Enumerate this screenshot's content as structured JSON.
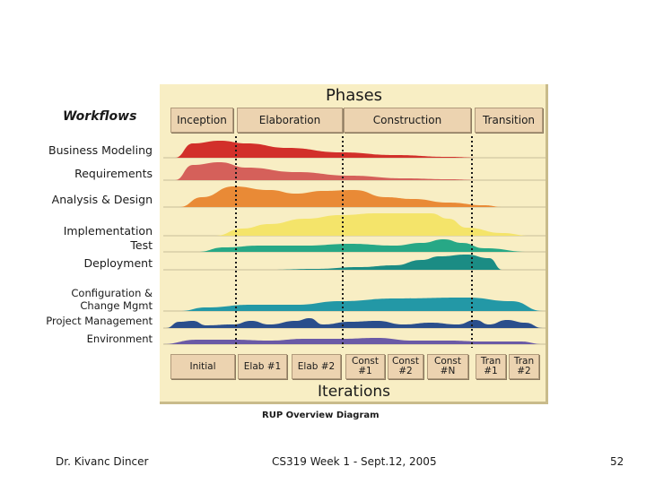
{
  "diagram": {
    "workflows_title": "Workflows",
    "phases_title": "Phases",
    "iterations_title": "Iterations",
    "caption": "RUP Overview Diagram",
    "phases": [
      "Inception",
      "Elaboration",
      "Construction",
      "Transition"
    ],
    "iterations": [
      "Initial",
      "Elab #1",
      "Elab #2",
      "Const #1",
      "Const #2",
      "Const #N",
      "Tran #1",
      "Tran #2"
    ],
    "workflows": [
      {
        "label": "Business Modeling",
        "color": "#d2302a"
      },
      {
        "label": "Requirements",
        "color": "#d5605a"
      },
      {
        "label": "Analysis & Design",
        "color": "#e98a36"
      },
      {
        "label": "Implementation",
        "color": "#f4e46a"
      },
      {
        "label": "Test",
        "color": "#27a886"
      },
      {
        "label": "Deployment",
        "color": "#1b8c84"
      },
      {
        "label": "Configuration & Change Mgmt",
        "color": "#2398a6"
      },
      {
        "label": "Project Management",
        "color": "#2a4e8c"
      },
      {
        "label": "Environment",
        "color": "#6a5aa6"
      }
    ]
  },
  "footer": {
    "author": "Dr. Kivanc Dincer",
    "course": "CS319 Week 1 - Sept.12, 2005",
    "page": "52"
  }
}
